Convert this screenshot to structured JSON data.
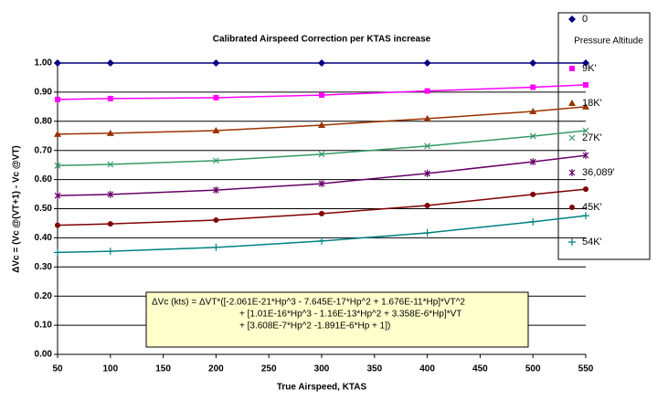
{
  "chart_data": {
    "type": "line",
    "title": "Calibrated Airspeed Correction per KTAS increase",
    "x_label": "True Airspeed, KTAS",
    "y_label": "ΔVc = (Vc @(VT+1) - Vc @VT)",
    "legend_title": "Pressure Altitude",
    "annotation": [
      "ΔVc (kts) = ΔVT*([-2.061E-21*Hp^3 - 7.645E-17*Hp^2 + 1.676E-11*Hp]*VT^2",
      "+ [1.01E-16*Hp^3 - 1.16E-13*Hp^2 + 3.358E-6*Hp]*VT",
      "+ [3.608E-7*Hp^2 -1.891E-6*Hp + 1])"
    ],
    "x": [
      50,
      100,
      200,
      300,
      400,
      500,
      550
    ],
    "series": [
      {
        "name": "0",
        "color": "#000080",
        "marker": "diamond",
        "values": [
          1.0,
          1.0,
          1.0,
          1.0,
          1.0,
          1.0,
          1.0
        ]
      },
      {
        "name": "9K'",
        "color": "#ff00ff",
        "marker": "square",
        "values": [
          0.875,
          0.878,
          0.881,
          0.89,
          0.904,
          0.917,
          0.925
        ]
      },
      {
        "name": "18K'",
        "color": "#993300",
        "marker": "triangle",
        "values": [
          0.756,
          0.759,
          0.768,
          0.787,
          0.809,
          0.834,
          0.85
        ]
      },
      {
        "name": "27K'",
        "color": "#339966",
        "marker": "x",
        "values": [
          0.648,
          0.652,
          0.665,
          0.687,
          0.715,
          0.749,
          0.768
        ]
      },
      {
        "name": "36,089'",
        "color": "#660066",
        "marker": "star",
        "values": [
          0.545,
          0.549,
          0.564,
          0.586,
          0.621,
          0.661,
          0.683
        ]
      },
      {
        "name": "45K'",
        "color": "#800000",
        "marker": "circle",
        "values": [
          0.443,
          0.448,
          0.461,
          0.483,
          0.511,
          0.549,
          0.567
        ]
      },
      {
        "name": "54K'",
        "color": "#008080",
        "marker": "plus",
        "values": [
          0.35,
          0.354,
          0.367,
          0.389,
          0.417,
          0.455,
          0.476
        ]
      }
    ],
    "xlim": [
      50,
      550
    ],
    "xticks": [
      50,
      100,
      150,
      200,
      250,
      300,
      350,
      400,
      450,
      500,
      550
    ],
    "ylim": [
      0,
      1
    ],
    "yticks": [
      {
        "value": 0,
        "label": "0.00"
      },
      {
        "value": 0.1,
        "label": "0.10"
      },
      {
        "value": 0.2,
        "label": "0.20"
      },
      {
        "value": 0.3,
        "label": "0.30"
      },
      {
        "value": 0.4,
        "label": "0.40"
      },
      {
        "value": 0.5,
        "label": "0.50"
      },
      {
        "value": 0.6,
        "label": "0.60"
      },
      {
        "value": 0.7,
        "label": "0.70"
      },
      {
        "value": 0.8,
        "label": "0.80"
      },
      {
        "value": 0.9,
        "label": "0.90"
      },
      {
        "value": 1,
        "label": "1.00"
      }
    ],
    "grid": true
  }
}
